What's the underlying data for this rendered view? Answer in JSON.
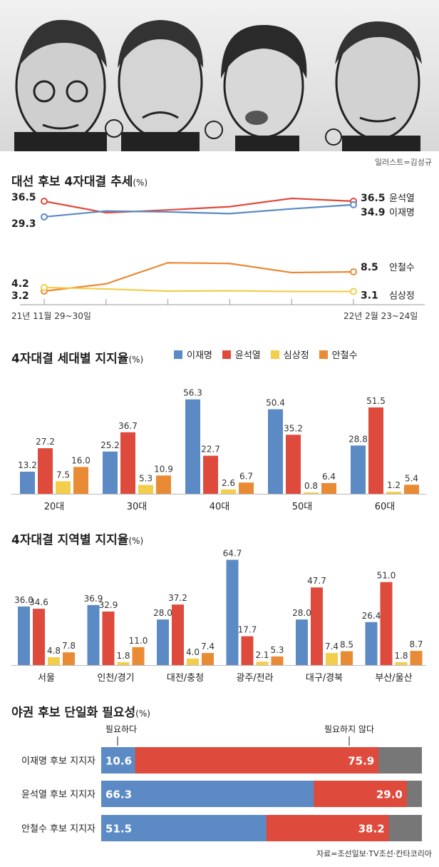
{
  "illustration": {
    "credit": "일러스트=김성규"
  },
  "colors": {
    "lee": "#5b8ac4",
    "yoon": "#de4b3d",
    "sim": "#f3cd4c",
    "ahn": "#e98a35",
    "grey": "#777777",
    "axis": "#999999"
  },
  "chart_data": [
    {
      "type": "line",
      "title": "대선 후보 4자대결 추세",
      "unit": "(%)",
      "x_start_label": "21년 11월 29~30일",
      "x_end_label": "22년 2월 23~24일",
      "x": [
        0,
        1,
        2,
        3,
        4,
        5
      ],
      "ylim": [
        0,
        45
      ],
      "series": [
        {
          "key": "yoon",
          "name": "윤석열",
          "values": [
            36.5,
            31.2,
            32.5,
            34.0,
            37.8,
            36.5
          ],
          "start_label": "36.5",
          "end_label": "36.5"
        },
        {
          "key": "lee",
          "name": "이재명",
          "values": [
            29.3,
            32.0,
            31.6,
            30.8,
            33.0,
            34.9
          ],
          "start_label": "29.3",
          "end_label": "34.9"
        },
        {
          "key": "ahn",
          "name": "안철수",
          "values": [
            3.2,
            5.2,
            11.0,
            10.8,
            8.3,
            8.5
          ],
          "start_label": "3.2",
          "end_label": "8.5"
        },
        {
          "key": "sim",
          "name": "심상정",
          "values": [
            4.2,
            3.8,
            3.2,
            3.3,
            3.1,
            3.1
          ],
          "start_label": "4.2",
          "end_label": "3.1"
        }
      ]
    },
    {
      "type": "bar",
      "title": "4자대결 세대별 지지율",
      "unit": "(%)",
      "categories": [
        "20대",
        "30대",
        "40대",
        "50대",
        "60대"
      ],
      "ylim": [
        0,
        60
      ],
      "series": [
        {
          "key": "lee",
          "name": "이재명",
          "values": [
            13.2,
            25.2,
            56.3,
            50.4,
            28.8
          ]
        },
        {
          "key": "yoon",
          "name": "윤석열",
          "values": [
            27.2,
            36.7,
            22.7,
            35.2,
            51.5
          ]
        },
        {
          "key": "sim",
          "name": "심상정",
          "values": [
            7.5,
            5.3,
            2.6,
            0.8,
            1.2
          ]
        },
        {
          "key": "ahn",
          "name": "안철수",
          "values": [
            16.0,
            10.9,
            6.7,
            6.4,
            5.4
          ]
        }
      ]
    },
    {
      "type": "bar",
      "title": "4자대결 지역별 지지율",
      "unit": "(%)",
      "categories": [
        "서울",
        "인천/경기",
        "대전/충청",
        "광주/전라",
        "대구/경북",
        "부산/울산"
      ],
      "ylim": [
        0,
        70
      ],
      "series": [
        {
          "key": "lee",
          "name": "이재명",
          "values": [
            36.0,
            36.9,
            28.0,
            64.7,
            28.0,
            26.4
          ]
        },
        {
          "key": "yoon",
          "name": "윤석열",
          "values": [
            34.6,
            32.9,
            37.2,
            17.7,
            47.7,
            51.0
          ]
        },
        {
          "key": "sim",
          "name": "심상정",
          "values": [
            4.8,
            1.8,
            4.0,
            2.1,
            7.4,
            1.8
          ]
        },
        {
          "key": "ahn",
          "name": "안철수",
          "values": [
            7.8,
            11.0,
            7.4,
            5.3,
            8.5,
            8.7
          ]
        }
      ]
    },
    {
      "type": "bar",
      "orientation": "horizontal-stacked",
      "title": "야권 후보 단일화 필요성",
      "unit": "(%)",
      "need_label": "필요하다",
      "no_need_label": "필요하지 않다",
      "categories": [
        "이재명 후보 지지자",
        "윤석열 후보 지지자",
        "안철수 후보 지지자"
      ],
      "series": [
        {
          "name": "필요하다",
          "values": [
            10.6,
            66.3,
            51.5
          ]
        },
        {
          "name": "필요하지 않다",
          "values": [
            75.9,
            29.0,
            38.2
          ]
        }
      ]
    }
  ],
  "source": "자료=조선일보·TV조선·칸타코리아"
}
